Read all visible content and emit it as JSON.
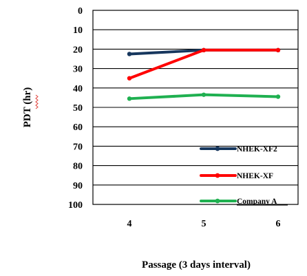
{
  "chart_data": {
    "type": "line",
    "categories": [
      "4",
      "5",
      "6"
    ],
    "xlabel": "Passage (3 days interval)",
    "ylabel": "PDT (hr)",
    "ylim": [
      0,
      100
    ],
    "y_ticks": [
      "0",
      "10",
      "20",
      "30",
      "40",
      "50",
      "60",
      "70",
      "80",
      "90",
      "100"
    ],
    "y_axis_reversed": true,
    "grid": "horizontal",
    "legend_position": "bottom-right",
    "series": [
      {
        "name": "NHEK-XF2",
        "values": [
          22.5,
          20.5,
          20.5
        ],
        "color": "#17375e"
      },
      {
        "name": "NHEK-XF",
        "values": [
          35,
          20.5,
          20.5
        ],
        "color": "#ff0000"
      },
      {
        "name": "Company A",
        "values": [
          45.5,
          43.5,
          44.5
        ],
        "color": "#1fb050"
      }
    ]
  }
}
